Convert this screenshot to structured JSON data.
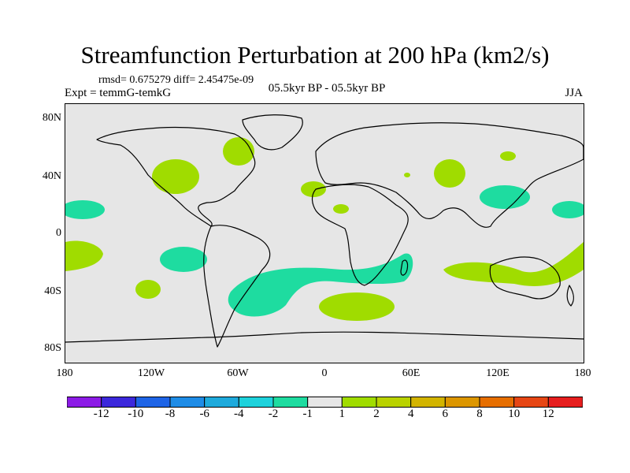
{
  "title": "Streamfunction Perturbation at 200 hPa (km2/s)",
  "stats_text": "rmsd= 0.675279  diff= 2.45475e-09",
  "experiment_text": "Expt = temmG-temkG",
  "period_text": "05.5kyr BP - 05.5kyr BP",
  "season_text": "JJA",
  "lat_labels": [
    "80N",
    "40N",
    "0",
    "40S",
    "80S"
  ],
  "lon_labels": [
    "180",
    "120W",
    "60W",
    "0",
    "60E",
    "120E",
    "180"
  ],
  "colorbar": {
    "colors": [
      "#8c1be6",
      "#3c28dc",
      "#1e64e6",
      "#1e8ce6",
      "#1eaadc",
      "#1ed2dc",
      "#1edca0",
      "#e6e6e6",
      "#a0dc00",
      "#b9d200",
      "#d2b400",
      "#dc9600",
      "#e66e00",
      "#e64614",
      "#e61e1e"
    ],
    "labels": [
      "-12",
      "-10",
      "-8",
      "-6",
      "-4",
      "-2",
      "-1",
      "1",
      "2",
      "4",
      "6",
      "8",
      "10",
      "12"
    ]
  },
  "colors": {
    "background": "#e6e6e6",
    "positive": "#a0dc00",
    "negative": "#1edca0"
  }
}
